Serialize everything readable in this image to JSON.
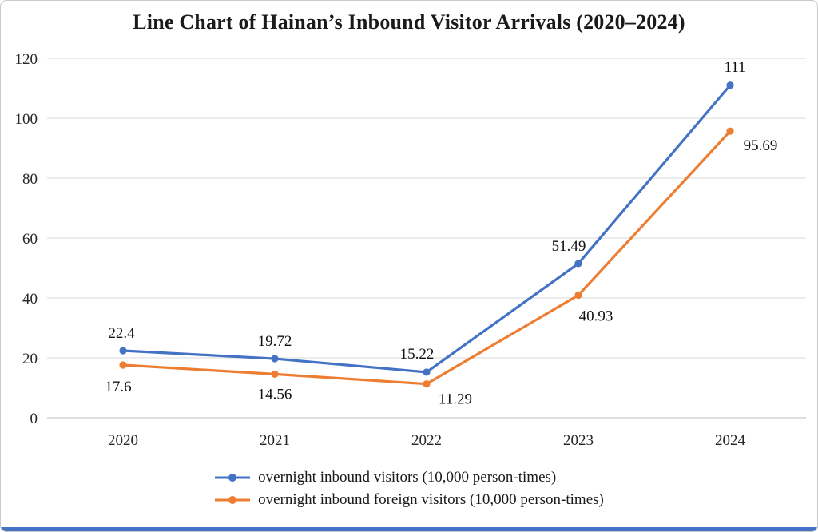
{
  "chart_data": {
    "type": "line",
    "title": "Line Chart of Hainan’s Inbound Visitor Arrivals (2020–2024)",
    "categories": [
      "2020",
      "2021",
      "2022",
      "2023",
      "2024"
    ],
    "series": [
      {
        "name": "overnight inbound visitors (10,000 person-times)",
        "color": "#4472C4",
        "values": [
          22.4,
          19.72,
          15.22,
          51.49,
          111
        ],
        "labels": [
          "22.4",
          "19.72",
          "15.22",
          "51.49",
          "111"
        ],
        "label_offsets": [
          [
            -2,
            -16,
            "middle"
          ],
          [
            0,
            -16,
            "middle"
          ],
          [
            -12,
            -17,
            "middle"
          ],
          [
            -12,
            -16,
            "middle"
          ],
          [
            6,
            -17,
            "middle"
          ]
        ]
      },
      {
        "name": "overnight inbound foreign visitors (10,000 person-times)",
        "color": "#ED7D31",
        "values": [
          17.6,
          14.56,
          11.29,
          40.93,
          95.69
        ],
        "labels": [
          "17.6",
          "14.56",
          "11.29",
          "40.93",
          "95.69"
        ],
        "label_offsets": [
          [
            -6,
            33,
            "middle"
          ],
          [
            0,
            31,
            "middle"
          ],
          [
            36,
            25,
            "middle"
          ],
          [
            22,
            32,
            "middle"
          ],
          [
            38,
            24,
            "middle"
          ]
        ]
      }
    ],
    "ylim": [
      0,
      120
    ],
    "ytick_step": 20,
    "yticks": [
      "0",
      "20",
      "40",
      "60",
      "80",
      "100",
      "120"
    ],
    "grid": true,
    "legend_position": "bottom"
  },
  "accent_bottom_bar_color": "#4472C4"
}
